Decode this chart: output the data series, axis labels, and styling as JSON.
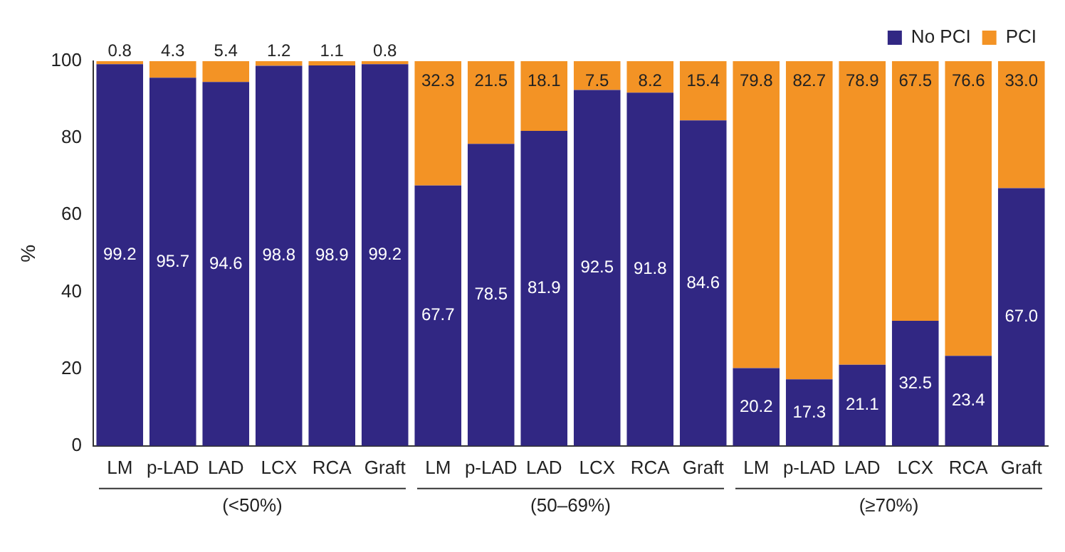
{
  "chart_data": {
    "type": "bar",
    "stacked": true,
    "ylabel": "%",
    "categories": [
      "LM",
      "p-LAD",
      "LAD",
      "LCX",
      "RCA",
      "Graft",
      "LM",
      "p-LAD",
      "LAD",
      "LCX",
      "RCA",
      "Graft",
      "LM",
      "p-LAD",
      "LAD",
      "LCX",
      "RCA",
      "Graft"
    ],
    "series": [
      {
        "name": "No PCI",
        "color": "#312783",
        "values": [
          99.2,
          95.7,
          94.6,
          98.8,
          98.9,
          99.2,
          67.7,
          78.5,
          81.9,
          92.5,
          91.8,
          84.6,
          20.2,
          17.3,
          21.1,
          32.5,
          23.4,
          67.0
        ],
        "value_labels": [
          "99.2",
          "95.7",
          "94.6",
          "98.8",
          "98.9",
          "99.2",
          "67.7",
          "78.5",
          "81.9",
          "92.5",
          "91.8",
          "84.6",
          "20.2",
          "17.3",
          "21.1",
          "32.5",
          "23.4",
          "67.0"
        ]
      },
      {
        "name": "PCI",
        "color": "#f39325",
        "values": [
          0.8,
          4.3,
          5.4,
          1.2,
          1.1,
          0.8,
          32.3,
          21.5,
          18.1,
          7.5,
          8.2,
          15.4,
          79.8,
          82.7,
          78.9,
          67.5,
          76.6,
          33.0
        ],
        "value_labels": [
          "0.8",
          "4.3",
          "5.4",
          "1.2",
          "1.1",
          "0.8",
          "32.3",
          "21.5",
          "18.1",
          "7.5",
          "8.2",
          "15.4",
          "79.8",
          "82.7",
          "78.9",
          "67.5",
          "76.6",
          "33.0"
        ]
      }
    ],
    "ylim": [
      0,
      100
    ],
    "yticks": [
      0,
      20,
      40,
      60,
      80,
      100
    ],
    "grid": false,
    "legend": "top right",
    "annotations": [
      "(<50%)",
      "(50–69%)",
      "(≥70%)"
    ]
  }
}
